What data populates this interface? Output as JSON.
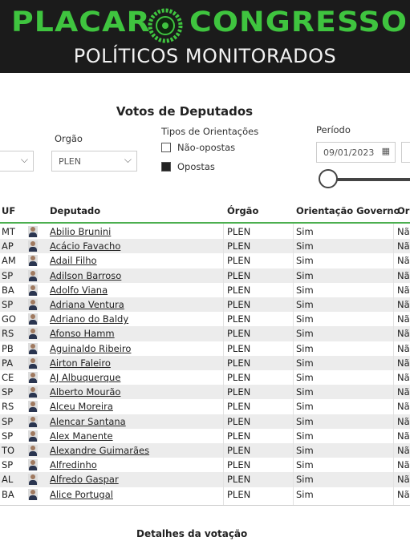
{
  "header": {
    "logo_left": "PLACAR",
    "logo_right": "CONGRESSO",
    "subtitle": "POLÍTICOS MONITORADOS"
  },
  "page_title": "Votos de Deputados",
  "filters": {
    "orgao": {
      "label": "Orgão",
      "value": "PLEN"
    },
    "orientacoes": {
      "label": "Tipos de Orientações",
      "options": [
        {
          "label": "Não-opostas",
          "checked": false
        },
        {
          "label": "Opostas",
          "checked": true
        }
      ]
    },
    "periodo": {
      "label": "Período",
      "start": "09/01/2023"
    }
  },
  "table": {
    "columns": [
      "UF",
      "Deputado",
      "Órgão",
      "Orientação Governo",
      "Ori"
    ],
    "rows": [
      [
        "MT",
        "Abilio Brunini",
        "PLEN",
        "Sim",
        "Não"
      ],
      [
        "AP",
        "Acácio Favacho",
        "PLEN",
        "Sim",
        "Não"
      ],
      [
        "AM",
        "Adail Filho",
        "PLEN",
        "Sim",
        "Não"
      ],
      [
        "SP",
        "Adilson Barroso",
        "PLEN",
        "Sim",
        "Não"
      ],
      [
        "BA",
        "Adolfo Viana",
        "PLEN",
        "Sim",
        "Não"
      ],
      [
        "SP",
        "Adriana Ventura",
        "PLEN",
        "Sim",
        "Não"
      ],
      [
        "GO",
        "Adriano do Baldy",
        "PLEN",
        "Sim",
        "Não"
      ],
      [
        "RS",
        "Afonso Hamm",
        "PLEN",
        "Sim",
        "Não"
      ],
      [
        "PB",
        "Aguinaldo Ribeiro",
        "PLEN",
        "Sim",
        "Não"
      ],
      [
        "PA",
        "Airton Faleiro",
        "PLEN",
        "Sim",
        "Não"
      ],
      [
        "CE",
        "AJ Albuquerque",
        "PLEN",
        "Sim",
        "Não"
      ],
      [
        "SP",
        "Alberto Mourão",
        "PLEN",
        "Sim",
        "Não"
      ],
      [
        "RS",
        "Alceu Moreira",
        "PLEN",
        "Sim",
        "Não"
      ],
      [
        "SP",
        "Alencar Santana",
        "PLEN",
        "Sim",
        "Não"
      ],
      [
        "SP",
        "Alex Manente",
        "PLEN",
        "Sim",
        "Não"
      ],
      [
        "TO",
        "Alexandre Guimarães",
        "PLEN",
        "Sim",
        "Não"
      ],
      [
        "SP",
        "Alfredinho",
        "PLEN",
        "Sim",
        "Não"
      ],
      [
        "AL",
        "Alfredo Gaspar",
        "PLEN",
        "Sim",
        "Não"
      ],
      [
        "BA",
        "Alice Portugal",
        "PLEN",
        "Sim",
        "Não"
      ]
    ]
  },
  "footer": "Detalhes da votação"
}
